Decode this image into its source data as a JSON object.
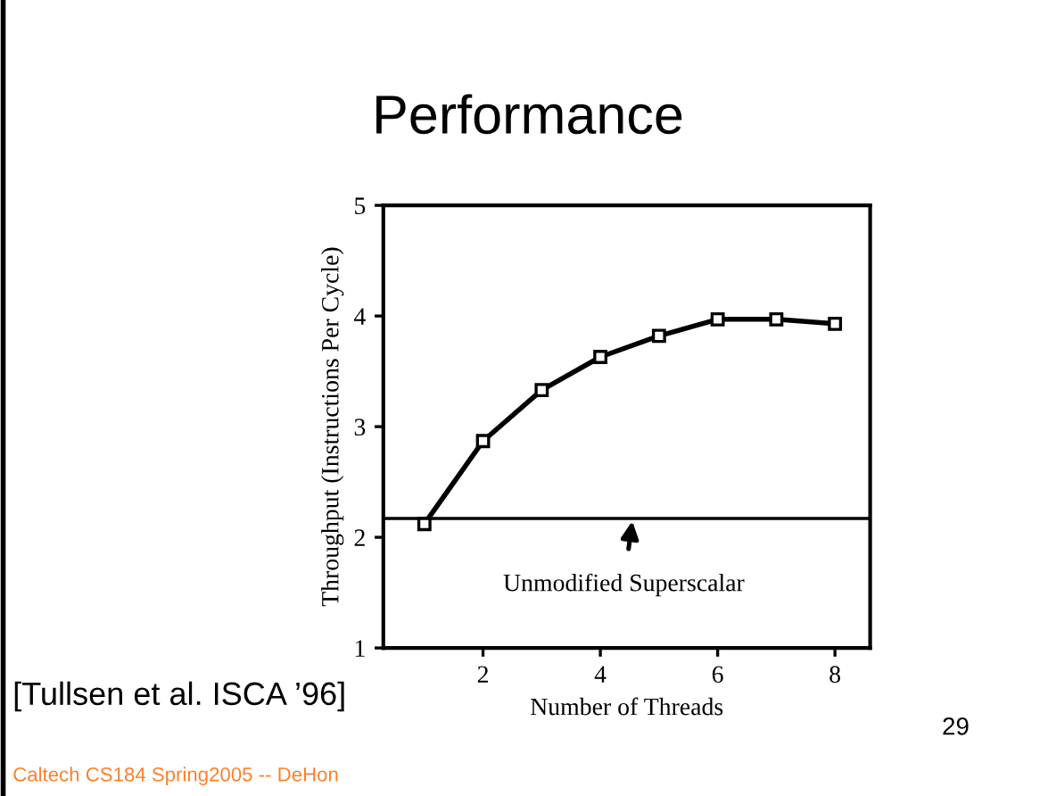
{
  "chart_data": {
    "type": "line",
    "title": "Performance",
    "xlabel": "Number of Threads",
    "ylabel": "Throughput (Instructions Per Cycle)",
    "x": [
      1,
      2,
      3,
      4,
      5,
      6,
      7,
      8
    ],
    "series": [
      {
        "color": "#000000",
        "values": [
          2.12,
          2.87,
          3.33,
          3.63,
          3.82,
          3.97,
          3.97,
          3.93
        ]
      }
    ],
    "xlim": [
      0.3,
      8.6
    ],
    "xticks": [
      2,
      4,
      6,
      8
    ],
    "ylim": [
      1,
      5
    ],
    "yticks": [
      1,
      2,
      3,
      4,
      5
    ],
    "ref_lines": [
      {
        "axis": "y",
        "value": 2.17,
        "color": "#000000"
      }
    ],
    "annotations": [
      {
        "text": "Unmodified Superscalar",
        "x": 4.55,
        "y": 2.17
      },
      "[Tullsen et al. ISCA ’96]",
      "29",
      "Caltech CS184 Spring2005 -- DeHon"
    ],
    "marker": "square",
    "line_style": "solid",
    "grid": false,
    "legend": false
  }
}
